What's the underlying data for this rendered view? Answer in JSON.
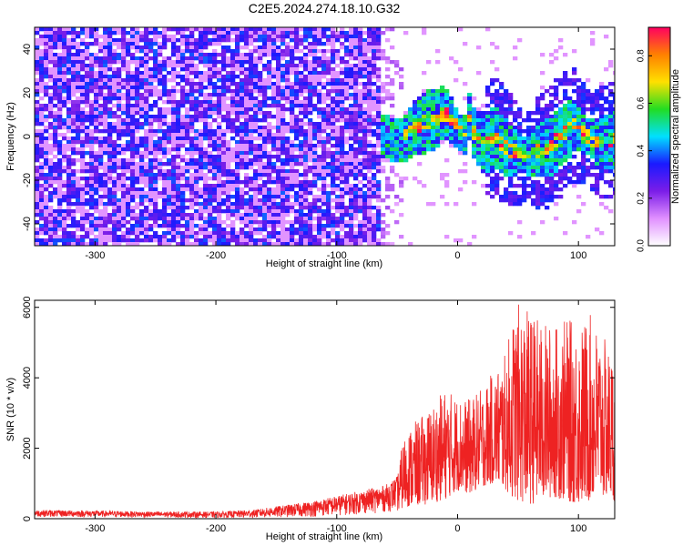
{
  "title": "C2E5.2024.274.18.10.G32",
  "colors": {
    "snr_line": "#ee2222",
    "spectrogram_noise": "#6a1ee8",
    "colormap_stops": [
      "#ffffff",
      "#e090ff",
      "#7b1de8",
      "#1a1aff",
      "#00e0ff",
      "#22dd22",
      "#ffe000",
      "#ff8000",
      "#ff0060"
    ]
  },
  "chart_data": [
    {
      "type": "heatmap",
      "xlabel": "Height of straight line (km)",
      "ylabel": "Frequency (Hz)",
      "xlim": [
        -350,
        130
      ],
      "ylim": [
        -50,
        50
      ],
      "xticks": [
        -300,
        -200,
        -100,
        0,
        100
      ],
      "yticks": [
        -40,
        -20,
        0,
        20,
        40
      ],
      "colorbar": {
        "label": "Normalized spectral amplitude",
        "range": [
          0,
          0.92
        ],
        "ticks": [
          "0.0",
          "0.2",
          "0.4",
          "0.6",
          "0.8"
        ],
        "tick_values": [
          0,
          0.2,
          0.4,
          0.6,
          0.8
        ]
      },
      "signal_band": {
        "x": [
          -65,
          -50,
          -35,
          -20,
          -12,
          -5,
          0,
          5,
          8,
          12,
          20,
          30,
          40,
          55,
          65,
          75,
          85,
          95,
          105,
          115,
          125
        ],
        "center_hz": [
          2,
          -2,
          6,
          9,
          12,
          7,
          3,
          1,
          10,
          2,
          -2,
          0,
          -5,
          -8,
          -6,
          -4,
          2,
          6,
          1,
          -2,
          -1
        ]
      }
    },
    {
      "type": "line",
      "xlabel": "Height of straight line (km)",
      "ylabel": "SNR (10 * v/v)",
      "xlim": [
        -350,
        130
      ],
      "ylim": [
        0,
        6200
      ],
      "xticks": [
        -300,
        -200,
        -100,
        0,
        100
      ],
      "yticks": [
        0,
        2000,
        4000,
        6000
      ],
      "envelope": {
        "x": [
          -350,
          -300,
          -250,
          -200,
          -170,
          -150,
          -120,
          -100,
          -80,
          -60,
          -50,
          -45,
          -40,
          -30,
          -20,
          -10,
          0,
          10,
          20,
          30,
          40,
          45,
          50,
          60,
          70,
          80,
          90,
          100,
          110,
          120,
          130
        ],
        "lower": [
          50,
          40,
          30,
          20,
          20,
          30,
          50,
          80,
          120,
          180,
          220,
          300,
          350,
          380,
          450,
          550,
          800,
          700,
          900,
          1000,
          800,
          600,
          500,
          400,
          500,
          600,
          500,
          400,
          500,
          600,
          500
        ],
        "upper": [
          250,
          230,
          200,
          200,
          250,
          350,
          500,
          650,
          800,
          950,
          1200,
          2300,
          2600,
          2900,
          3300,
          3700,
          3500,
          3400,
          3700,
          4200,
          4700,
          5700,
          6100,
          5900,
          5600,
          5500,
          5700,
          5500,
          5800,
          5200,
          4600
        ]
      }
    }
  ]
}
